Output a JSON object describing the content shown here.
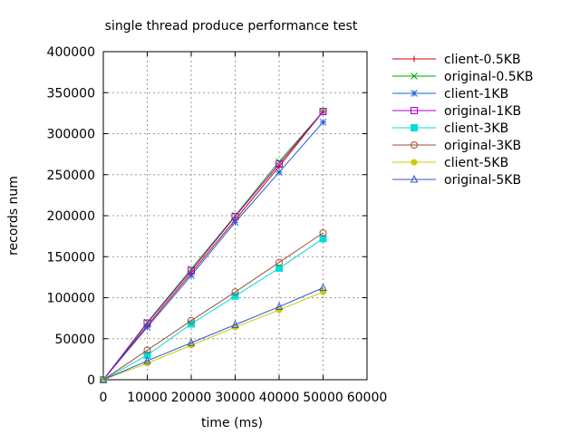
{
  "chart_data": {
    "type": "line",
    "title": "single thread produce performance test",
    "xlabel": "time (ms)",
    "ylabel": "records num",
    "xlim": [
      0,
      60000
    ],
    "ylim": [
      0,
      400000
    ],
    "xticks": [
      0,
      10000,
      20000,
      30000,
      40000,
      50000,
      60000
    ],
    "yticks": [
      0,
      50000,
      100000,
      150000,
      200000,
      250000,
      300000,
      350000,
      400000
    ],
    "grid": true,
    "legend_position": "top-right-outside",
    "x": [
      0,
      10000,
      20000,
      30000,
      40000,
      50000
    ],
    "series": [
      {
        "name": "client-0.5KB",
        "color": "#cc0000",
        "marker": "plus",
        "values": [
          0,
          66000,
          130000,
          195000,
          260000,
          327000
        ]
      },
      {
        "name": "original-0.5KB",
        "color": "#00aa00",
        "marker": "cross",
        "values": [
          0,
          70000,
          135000,
          200000,
          266000,
          327000
        ]
      },
      {
        "name": "client-1KB",
        "color": "#1a5fd6",
        "marker": "star",
        "values": [
          0,
          64000,
          127000,
          192000,
          253000,
          314000
        ]
      },
      {
        "name": "original-1KB",
        "color": "#aa00cc",
        "marker": "square-open",
        "values": [
          0,
          69000,
          133000,
          199000,
          263000,
          327000
        ]
      },
      {
        "name": "client-3KB",
        "color": "#00dddd",
        "marker": "square-filled",
        "values": [
          0,
          30000,
          68000,
          102000,
          136000,
          172000
        ]
      },
      {
        "name": "original-3KB",
        "color": "#a0522d",
        "marker": "circle-open",
        "values": [
          0,
          36000,
          72000,
          107000,
          143000,
          179000
        ]
      },
      {
        "name": "client-5KB",
        "color": "#cccc00",
        "marker": "circle-filled",
        "values": [
          0,
          20000,
          42000,
          64000,
          85000,
          107000
        ]
      },
      {
        "name": "original-5KB",
        "color": "#3355cc",
        "marker": "triangle-open",
        "values": [
          0,
          23000,
          45000,
          67000,
          89000,
          112000
        ]
      }
    ]
  }
}
